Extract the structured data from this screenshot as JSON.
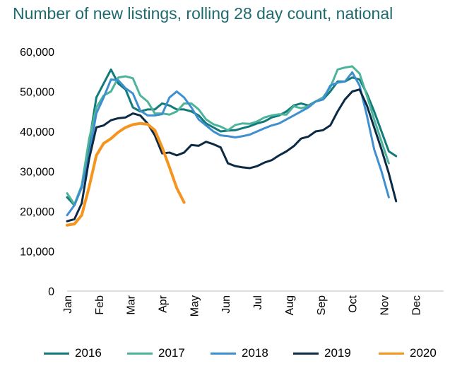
{
  "chart_data": {
    "type": "line",
    "title": "Number of new listings, rolling 28 day count, national",
    "x_unit": "week of year",
    "xlim": [
      0,
      51.5
    ],
    "ylim": [
      0,
      60000
    ],
    "yticks": [
      "0",
      "10,000",
      "20,000",
      "30,000",
      "40,000",
      "50,000",
      "60,000"
    ],
    "ytick_values": [
      0,
      10000,
      20000,
      30000,
      40000,
      50000,
      60000
    ],
    "month_labels": [
      "Jan",
      "Feb",
      "Mar",
      "Apr",
      "May",
      "Jun",
      "Jul",
      "Aug",
      "Sep",
      "Oct",
      "Nov",
      "Dec"
    ],
    "grid": false,
    "legend_position": "bottom",
    "series": [
      {
        "name": "2016",
        "color": "#127a7a",
        "values": [
          23500,
          21500,
          26000,
          37000,
          48500,
          52000,
          55500,
          52000,
          50500,
          46000,
          45000,
          45500,
          45500,
          47000,
          46500,
          45500,
          45500,
          45000,
          44000,
          42000,
          41000,
          40000,
          40200,
          40300,
          40800,
          41300,
          42000,
          42500,
          43500,
          44000,
          45000,
          46500,
          47000,
          46500,
          47500,
          48000,
          50000,
          52500,
          52500,
          53500,
          53000,
          49500,
          45000,
          40000,
          35000,
          33800
        ]
      },
      {
        "name": "2017",
        "color": "#4db39a",
        "values": [
          24500,
          21700,
          26500,
          38000,
          46000,
          49000,
          50000,
          53500,
          53800,
          53300,
          49000,
          47500,
          44500,
          44500,
          44200,
          45000,
          47000,
          47000,
          45500,
          43000,
          41800,
          41200,
          40300,
          41600,
          42000,
          41900,
          42500,
          43500,
          44000,
          44300,
          44200,
          46300,
          45800,
          46300,
          47500,
          48500,
          51000,
          55500,
          56000,
          56300,
          54500,
          49000,
          43000,
          37500,
          32000
        ]
      },
      {
        "name": "2018",
        "color": "#3e8fd0",
        "values": [
          19000,
          21500,
          26000,
          34000,
          44500,
          48500,
          53000,
          52800,
          50800,
          49500,
          45200,
          44000,
          44000,
          44300,
          48500,
          50000,
          48500,
          46000,
          43000,
          41500,
          40000,
          39000,
          38800,
          38500,
          38800,
          39200,
          40000,
          40800,
          41500,
          42000,
          43000,
          44000,
          45000,
          46000,
          47500,
          48000,
          51500,
          52200,
          52500,
          54800,
          51500,
          44000,
          35500,
          30000,
          23500
        ]
      },
      {
        "name": "2019",
        "color": "#0c2a44",
        "values": [
          17500,
          18000,
          22000,
          33000,
          41000,
          41500,
          42800,
          43300,
          43500,
          44500,
          44000,
          42000,
          39000,
          34500,
          34700,
          34000,
          34700,
          36600,
          36400,
          37400,
          36800,
          36000,
          32000,
          31300,
          31000,
          30800,
          31300,
          32200,
          32800,
          34000,
          35000,
          36300,
          38200,
          38700,
          40000,
          40300,
          41500,
          45000,
          48000,
          50000,
          50500,
          46500,
          41000,
          35500,
          29500,
          22500
        ]
      },
      {
        "name": "2020",
        "color": "#f5951f",
        "values": [
          16500,
          16800,
          19000,
          26000,
          34000,
          37000,
          38200,
          39800,
          41000,
          41700,
          42000,
          41800,
          40300,
          36000,
          31000,
          25800,
          22200
        ]
      }
    ]
  }
}
